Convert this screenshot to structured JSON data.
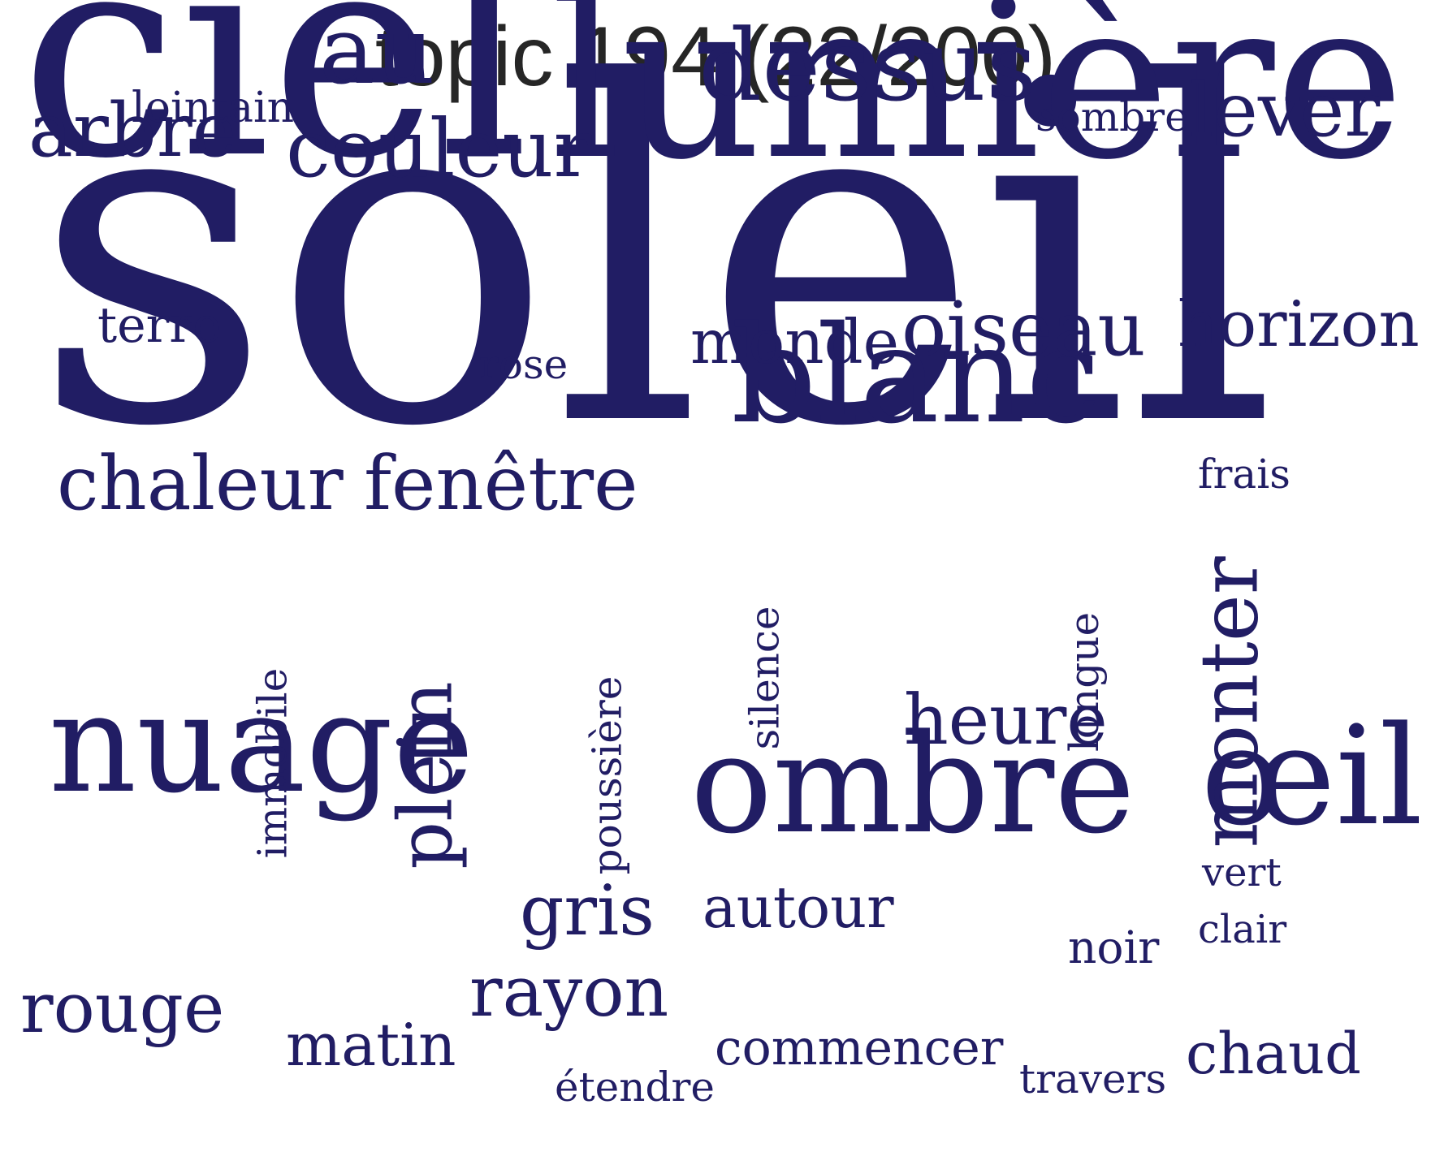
{
  "title": "topic 194 (22/200)",
  "colors": {
    "word": "#211d64",
    "title": "#262626",
    "background": "#ffffff"
  },
  "words": [
    {
      "text": "soleil",
      "orientation": "horizontal"
    },
    {
      "text": "ciel",
      "orientation": "horizontal"
    },
    {
      "text": "lumière",
      "orientation": "horizontal"
    },
    {
      "text": "ombre",
      "orientation": "horizontal"
    },
    {
      "text": "nuage",
      "orientation": "horizontal"
    },
    {
      "text": "œil",
      "orientation": "horizontal"
    },
    {
      "text": "blanc",
      "orientation": "horizontal"
    },
    {
      "text": "dessus",
      "orientation": "horizontal"
    },
    {
      "text": "monter",
      "orientation": "vertical"
    },
    {
      "text": "au",
      "orientation": "horizontal"
    },
    {
      "text": "couleur",
      "orientation": "horizontal"
    },
    {
      "text": "arbre",
      "orientation": "horizontal"
    },
    {
      "text": "chaleur",
      "orientation": "horizontal"
    },
    {
      "text": "fenêtre",
      "orientation": "horizontal"
    },
    {
      "text": "lever",
      "orientation": "horizontal"
    },
    {
      "text": "plein",
      "orientation": "vertical"
    },
    {
      "text": "oiseau",
      "orientation": "horizontal"
    },
    {
      "text": "horizon",
      "orientation": "horizontal"
    },
    {
      "text": "heure",
      "orientation": "horizontal"
    },
    {
      "text": "rayon",
      "orientation": "horizontal"
    },
    {
      "text": "monde",
      "orientation": "horizontal"
    },
    {
      "text": "rouge",
      "orientation": "horizontal"
    },
    {
      "text": "gris",
      "orientation": "horizontal"
    },
    {
      "text": "autour",
      "orientation": "horizontal"
    },
    {
      "text": "matin",
      "orientation": "horizontal"
    },
    {
      "text": "chaud",
      "orientation": "horizontal"
    },
    {
      "text": "commencer",
      "orientation": "horizontal"
    },
    {
      "text": "terre",
      "orientation": "horizontal"
    },
    {
      "text": "lointain",
      "orientation": "horizontal"
    },
    {
      "text": "sombre",
      "orientation": "horizontal"
    },
    {
      "text": "rose",
      "orientation": "horizontal"
    },
    {
      "text": "frais",
      "orientation": "horizontal"
    },
    {
      "text": "silence",
      "orientation": "vertical"
    },
    {
      "text": "longue",
      "orientation": "vertical"
    },
    {
      "text": "immobile",
      "orientation": "vertical"
    },
    {
      "text": "poussière",
      "orientation": "vertical"
    },
    {
      "text": "vert",
      "orientation": "horizontal"
    },
    {
      "text": "clair",
      "orientation": "horizontal"
    },
    {
      "text": "noir",
      "orientation": "horizontal"
    },
    {
      "text": "travers",
      "orientation": "horizontal"
    },
    {
      "text": "étendre",
      "orientation": "horizontal"
    }
  ]
}
